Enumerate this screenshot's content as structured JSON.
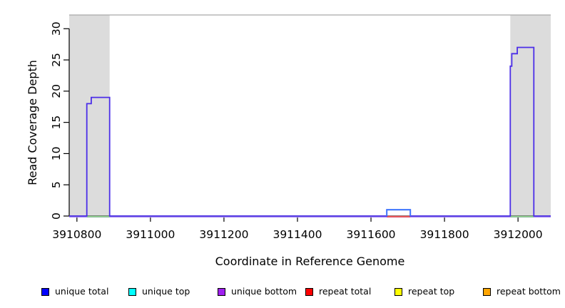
{
  "figure": {
    "x_axis_title": "Coordinate in Reference Genome",
    "y_axis_title": "Read Coverage Depth"
  },
  "chart_data": {
    "type": "line",
    "title": "",
    "xlabel": "Coordinate in Reference Genome",
    "ylabel": "Read Coverage Depth",
    "xlim": [
      3910779,
      3912089
    ],
    "ylim": [
      0,
      32.2
    ],
    "x_ticks": [
      3910800,
      3911000,
      3911200,
      3911400,
      3911600,
      3911800,
      3912000
    ],
    "y_ticks": [
      0,
      5,
      10,
      15,
      20,
      25,
      30
    ],
    "grid": false,
    "legend_position": "bottom",
    "plot_bg": "#ffffff",
    "top_boundary_line": {
      "y": 32.2,
      "color": "#a9a9a9"
    },
    "shaded_regions": [
      {
        "x0": 3910779,
        "x1": 3910889,
        "color": "#dcdcdc"
      },
      {
        "x0": 3911979,
        "x1": 3912089,
        "color": "#dcdcdc"
      }
    ],
    "series": [
      {
        "name": "unique total",
        "legend_color": "#0000ff",
        "drawn_color": "#4b2ee8",
        "points": [
          [
            3910779,
            0
          ],
          [
            3910827,
            0
          ],
          [
            3910827,
            18
          ],
          [
            3910839,
            18
          ],
          [
            3910839,
            19
          ],
          [
            3910889,
            19
          ],
          [
            3910889,
            0
          ],
          [
            3911643,
            0
          ],
          [
            3911643,
            1
          ],
          [
            3911707,
            1
          ],
          [
            3911707,
            0
          ],
          [
            3911979,
            0
          ],
          [
            3911979,
            24
          ],
          [
            3911983,
            24
          ],
          [
            3911983,
            26
          ],
          [
            3911998,
            26
          ],
          [
            3911998,
            27
          ],
          [
            3912043,
            27
          ],
          [
            3912043,
            0
          ],
          [
            3912089,
            0
          ]
        ]
      },
      {
        "name": "unique top",
        "legend_color": "#00ffff",
        "drawn_color": null,
        "points": [
          [
            3910779,
            0
          ],
          [
            3912089,
            0
          ]
        ]
      },
      {
        "name": "unique bottom",
        "legend_color": "#a020f0",
        "drawn_color": "#ab8ff0",
        "points": [
          [
            3910779,
            0
          ],
          [
            3912089,
            0
          ]
        ]
      },
      {
        "name": "repeat total",
        "legend_color": "#ff0000",
        "drawn_color": "#ee5555",
        "points": [
          [
            3910779,
            0
          ],
          [
            3912089,
            0
          ]
        ]
      },
      {
        "name": "repeat top",
        "legend_color": "#ffff00",
        "drawn_color": null,
        "points": [
          [
            3910779,
            0
          ],
          [
            3912089,
            0
          ]
        ]
      },
      {
        "name": "repeat bottom",
        "legend_color": "#ffa500",
        "drawn_color": null,
        "points": [
          [
            3910779,
            0
          ],
          [
            3912089,
            0
          ]
        ]
      }
    ],
    "baseline_underlay": {
      "color": "#ab8ff0"
    },
    "baseline_segments": [
      {
        "x0": 3910827,
        "x1": 3910889,
        "y": 0,
        "color": "#8fd08f"
      },
      {
        "x0": 3911643,
        "x1": 3911707,
        "y": 0,
        "color": "#ee5555"
      },
      {
        "x0": 3911979,
        "x1": 3912043,
        "y": 0,
        "color": "#8fd08f"
      }
    ],
    "overdraw_segments": [
      {
        "color": "#3d7bff",
        "points": [
          [
            3911643,
            0
          ],
          [
            3911643,
            1
          ],
          [
            3911707,
            1
          ],
          [
            3911707,
            0
          ]
        ]
      }
    ]
  },
  "legend": {
    "items": [
      {
        "label": "unique total",
        "color": "#0000ff"
      },
      {
        "label": "unique top",
        "color": "#00ffff"
      },
      {
        "label": "unique bottom",
        "color": "#a020f0"
      },
      {
        "label": "repeat total",
        "color": "#ff0000"
      },
      {
        "label": "repeat top",
        "color": "#ffff00"
      },
      {
        "label": "repeat bottom",
        "color": "#ffa500"
      }
    ]
  }
}
